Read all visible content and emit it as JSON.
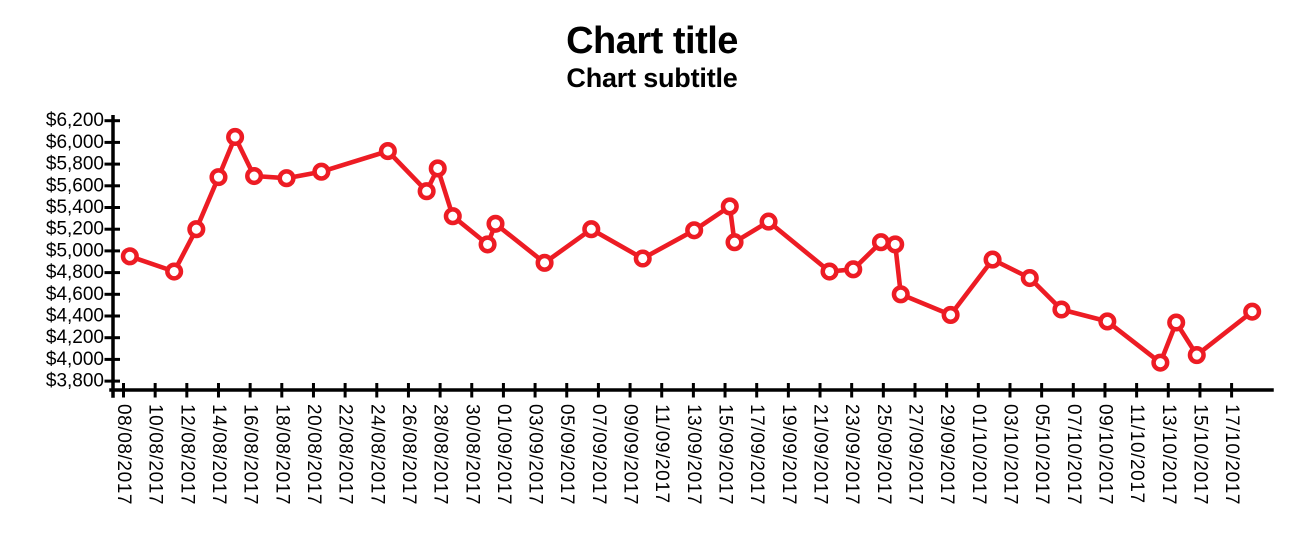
{
  "title": "Chart title",
  "subtitle": "Chart subtitle",
  "chart_data": {
    "type": "line",
    "title": "Chart title",
    "subtitle": "Chart subtitle",
    "series_color": "#ed1c24",
    "marker_style": "open-circle-white-fill",
    "background": "#ffffff",
    "grid": "off",
    "legend": "none",
    "y_axis": {
      "min": 3800,
      "max": 6200,
      "step": 200,
      "currency_prefix": "$",
      "tick_labels": [
        "$6,200",
        "$6,000",
        "$5,800",
        "$5,600",
        "$5,400",
        "$5,200",
        "$5,000",
        "$4,800",
        "$4,600",
        "$4,400",
        "$4,200",
        "$4,000",
        "$3,800"
      ],
      "tick_values": [
        6200,
        6000,
        5800,
        5600,
        5400,
        5200,
        5000,
        4800,
        4600,
        4400,
        4200,
        4000,
        3800
      ]
    },
    "x_axis": {
      "tick_interval_days": 2,
      "label_rotation_deg": 90,
      "first_tick_date": "08/08/2017",
      "last_tick_date": "17/10/2017",
      "tick_labels": [
        "08/08/2017",
        "10/08/2017",
        "12/08/2017",
        "14/08/2017",
        "16/08/2017",
        "18/08/2017",
        "20/08/2017",
        "22/08/2017",
        "24/08/2017",
        "26/08/2017",
        "28/08/2017",
        "30/08/2017",
        "01/09/2017",
        "03/09/2017",
        "05/09/2017",
        "07/09/2017",
        "09/09/2017",
        "11/09/2017",
        "13/09/2017",
        "15/09/2017",
        "17/09/2017",
        "19/09/2017",
        "21/09/2017",
        "23/09/2017",
        "25/09/2017",
        "27/09/2017",
        "29/09/2017",
        "01/10/2017",
        "03/10/2017",
        "05/10/2017",
        "07/10/2017",
        "09/10/2017",
        "11/10/2017",
        "13/10/2017",
        "15/10/2017",
        "17/10/2017"
      ]
    },
    "points": [
      {
        "date": "08/08/2017",
        "value": 4950,
        "day_offset": 0.4
      },
      {
        "date": "11/08/2017",
        "value": 4810,
        "day_offset": 3.2
      },
      {
        "date": "13/08/2017",
        "value": 5200,
        "day_offset": 4.6
      },
      {
        "date": "14/08/2017",
        "value": 5680,
        "day_offset": 6.0
      },
      {
        "date": "15/08/2017",
        "value": 6050,
        "day_offset": 7.05
      },
      {
        "date": "16/08/2017",
        "value": 5690,
        "day_offset": 8.25
      },
      {
        "date": "18/08/2017",
        "value": 5670,
        "day_offset": 10.3
      },
      {
        "date": "20/08/2017",
        "value": 5730,
        "day_offset": 12.5
      },
      {
        "date": "25/08/2017",
        "value": 5920,
        "day_offset": 16.7
      },
      {
        "date": "27/08/2017",
        "value": 5550,
        "day_offset": 19.15
      },
      {
        "date": "28/08/2017",
        "value": 5760,
        "day_offset": 19.85
      },
      {
        "date": "29/08/2017",
        "value": 5320,
        "day_offset": 20.8
      },
      {
        "date": "31/08/2017",
        "value": 5060,
        "day_offset": 23.0
      },
      {
        "date": "01/09/2017",
        "value": 5250,
        "day_offset": 23.5
      },
      {
        "date": "03/09/2017",
        "value": 4890,
        "day_offset": 26.6
      },
      {
        "date": "07/09/2017",
        "value": 5200,
        "day_offset": 29.55
      },
      {
        "date": "10/09/2017",
        "value": 4930,
        "day_offset": 32.8
      },
      {
        "date": "13/09/2017",
        "value": 5190,
        "day_offset": 36.05
      },
      {
        "date": "15/09/2017",
        "value": 5410,
        "day_offset": 38.3
      },
      {
        "date": "16/09/2017",
        "value": 5080,
        "day_offset": 38.6
      },
      {
        "date": "18/09/2017",
        "value": 5270,
        "day_offset": 40.75
      },
      {
        "date": "22/09/2017",
        "value": 4810,
        "day_offset": 44.6
      },
      {
        "date": "23/09/2017",
        "value": 4830,
        "day_offset": 46.1
      },
      {
        "date": "25/09/2017",
        "value": 5080,
        "day_offset": 47.85
      },
      {
        "date": "26/09/2017",
        "value": 5060,
        "day_offset": 48.75
      },
      {
        "date": "27/09/2017",
        "value": 4600,
        "day_offset": 49.1
      },
      {
        "date": "29/09/2017",
        "value": 4410,
        "day_offset": 52.25
      },
      {
        "date": "02/10/2017",
        "value": 4920,
        "day_offset": 54.9
      },
      {
        "date": "04/10/2017",
        "value": 4750,
        "day_offset": 57.25
      },
      {
        "date": "06/10/2017",
        "value": 4460,
        "day_offset": 59.25
      },
      {
        "date": "09/10/2017",
        "value": 4350,
        "day_offset": 62.15
      },
      {
        "date": "12/10/2017",
        "value": 3970,
        "day_offset": 65.5
      },
      {
        "date": "13/10/2017",
        "value": 4340,
        "day_offset": 66.5
      },
      {
        "date": "15/10/2017",
        "value": 4040,
        "day_offset": 67.8
      },
      {
        "date": "18/10/2017",
        "value": 4440,
        "day_offset": 71.3
      }
    ]
  }
}
